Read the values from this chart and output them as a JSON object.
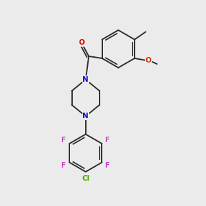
{
  "background_color": "#ebebeb",
  "bond_color": "#2d2d2d",
  "atom_colors": {
    "N": "#1010dd",
    "O_carbonyl": "#dd0000",
    "O_methoxy": "#cc3300",
    "F": "#cc44cc",
    "Cl": "#44aa00",
    "C": "#2d2d2d"
  },
  "figsize": [
    3.0,
    3.0
  ],
  "dpi": 100
}
